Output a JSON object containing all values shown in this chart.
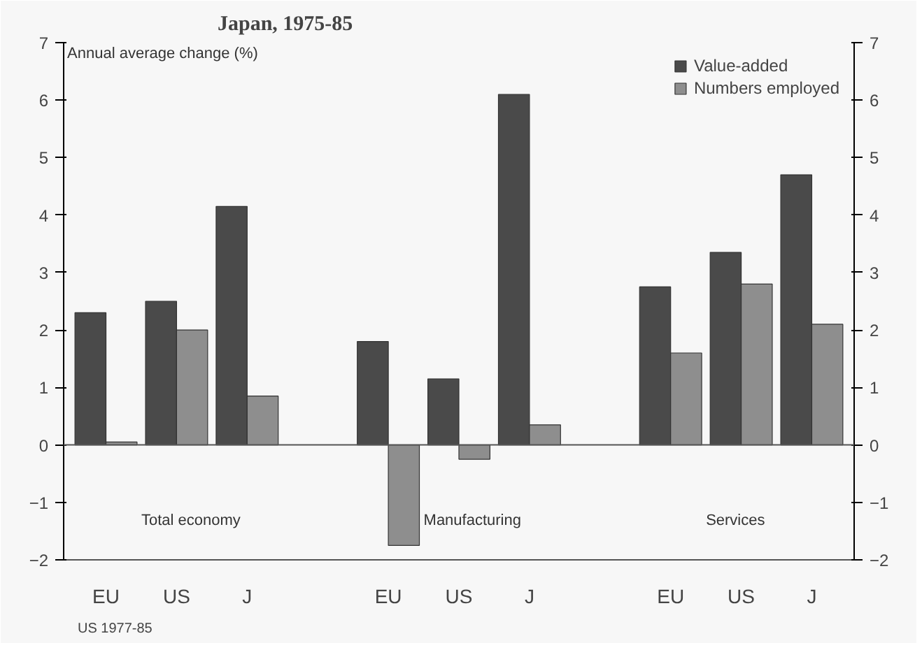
{
  "chart_data": {
    "type": "bar",
    "title": "Japan, 1975-85",
    "ylabel": "Annual average change (%)",
    "categories": [
      "EU",
      "US",
      "J",
      null,
      "EU",
      "US",
      "J",
      null,
      "EU",
      "US",
      "J"
    ],
    "series": [
      {
        "name": "Value-added",
        "color": "#4a4a4a",
        "values": [
          2.3,
          2.5,
          4.15,
          null,
          1.8,
          1.15,
          6.1,
          null,
          2.75,
          3.35,
          4.7
        ]
      },
      {
        "name": "Numbers employed",
        "color": "#8e8e8e",
        "values": [
          0.05,
          2.0,
          0.85,
          null,
          -1.75,
          -0.25,
          0.35,
          null,
          1.6,
          2.8,
          2.1
        ]
      }
    ],
    "ylim": [
      -2,
      7
    ],
    "yticks": [
      -2,
      -1,
      0,
      1,
      2,
      3,
      4,
      5,
      6,
      7
    ],
    "y2lim": [
      -2,
      7
    ],
    "y2ticks": [
      -2,
      -1,
      0,
      1,
      2,
      3,
      4,
      5,
      6,
      7
    ],
    "legend": "top right",
    "grid": false,
    "ref_lines": [
      {
        "axis": "y",
        "value": 0,
        "color": "#555555"
      }
    ],
    "annotations": [
      "Total economy",
      "Manufacturing",
      "Services",
      "US 1977-85"
    ]
  }
}
